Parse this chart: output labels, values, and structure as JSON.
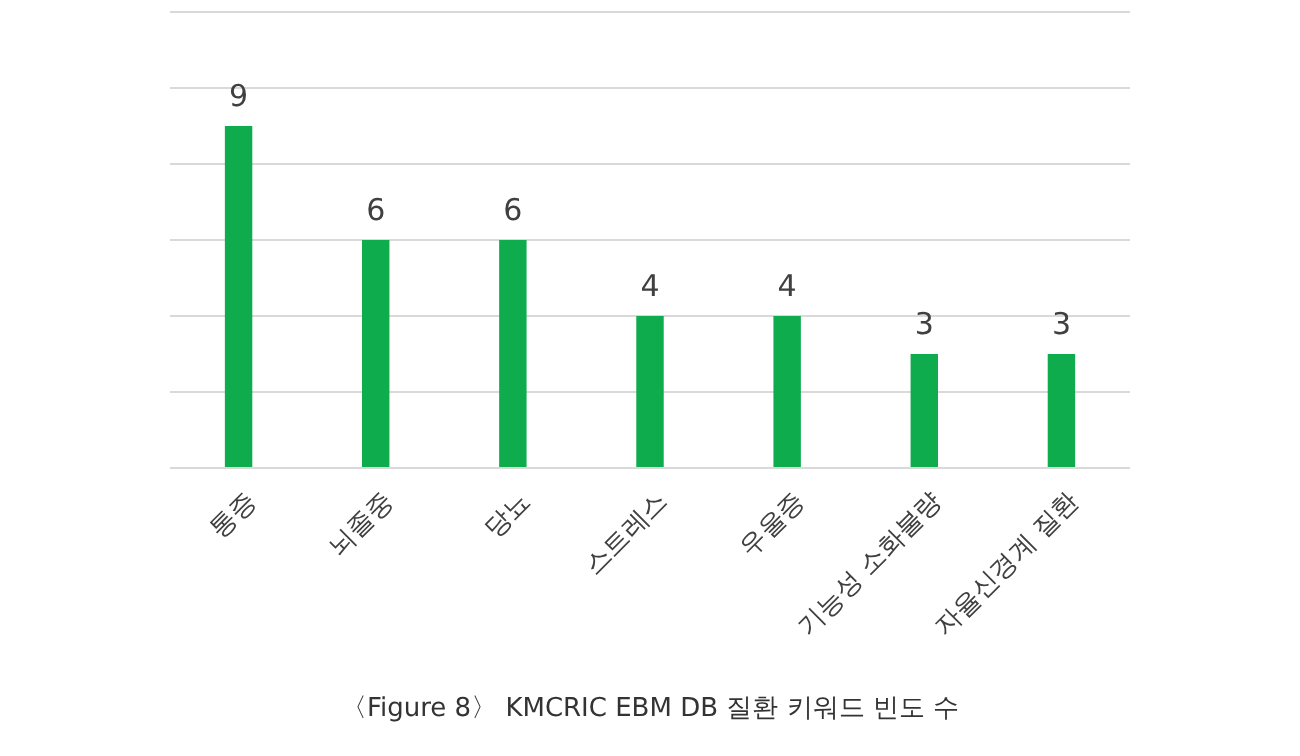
{
  "chart_data": {
    "type": "bar",
    "title": "〈Figure 8〉 KMCRIC EBM DB 질환 키워드 빈도 수",
    "categories": [
      "통증",
      "뇌졸중",
      "당뇨",
      "스트레스",
      "우울증",
      "기능성 소화불량",
      "자율신경계 질환"
    ],
    "values": [
      9,
      6,
      6,
      4,
      4,
      3,
      3
    ],
    "color": "#0fac4d",
    "ylim": [
      0,
      12
    ],
    "yticks": [
      {
        "value": 0,
        "label": null
      },
      {
        "value": 2,
        "label": null
      },
      {
        "value": 4,
        "label": null
      },
      {
        "value": 6,
        "label": null
      },
      {
        "value": 8,
        "label": null
      },
      {
        "value": 10,
        "label": null
      },
      {
        "value": 12,
        "label": null
      }
    ],
    "tick_labels": "x",
    "grid": "y",
    "data_labels": true
  }
}
